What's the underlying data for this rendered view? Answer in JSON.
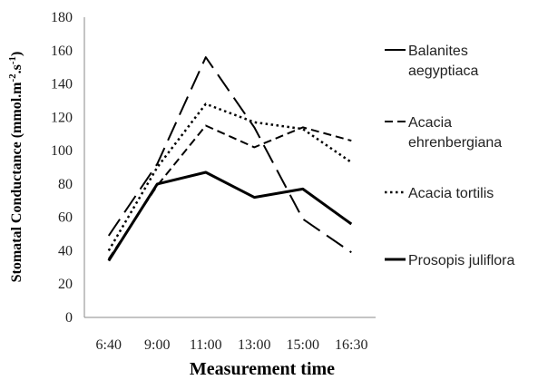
{
  "chart_data": {
    "type": "line",
    "title": "",
    "xlabel": "Measurement time",
    "ylabel": "Stomatal Conductance (mmol.m⁻².s⁻¹)",
    "ylabel_parts": {
      "main": "Stomatal Conductance (mmol.m",
      "sup1": "-2",
      "mid": ".s",
      "sup2": "-1",
      "end": ")"
    },
    "categories": [
      "6:40",
      "9:00",
      "11:00",
      "13:00",
      "15:00",
      "16:30"
    ],
    "ylim": [
      0,
      180
    ],
    "yticks": [
      0,
      20,
      40,
      60,
      80,
      100,
      120,
      140,
      160,
      180
    ],
    "grid": false,
    "legend_position": "right",
    "series": [
      {
        "name": "Balanites aegyptiaca",
        "name_lines": [
          "Balanites",
          "aegyptiaca"
        ],
        "style": "long-dash",
        "color": "#000000",
        "values": [
          49,
          92,
          156,
          114,
          59,
          39
        ]
      },
      {
        "name": "Acacia ehrenbergiana",
        "name_lines": [
          "Acacia",
          "ehrenbergiana"
        ],
        "style": "dash",
        "color": "#000000",
        "values": [
          35,
          79,
          115,
          102,
          114,
          106
        ]
      },
      {
        "name": "Acacia tortilis",
        "name_lines": [
          "Acacia tortilis"
        ],
        "style": "dot",
        "color": "#000000",
        "values": [
          40,
          90,
          128,
          117,
          113,
          93
        ]
      },
      {
        "name": "Prosopis juliflora",
        "name_lines": [
          "Prosopis juliflora"
        ],
        "style": "solid",
        "color": "#000000",
        "values": [
          34,
          80,
          87,
          72,
          77,
          56
        ]
      }
    ]
  }
}
